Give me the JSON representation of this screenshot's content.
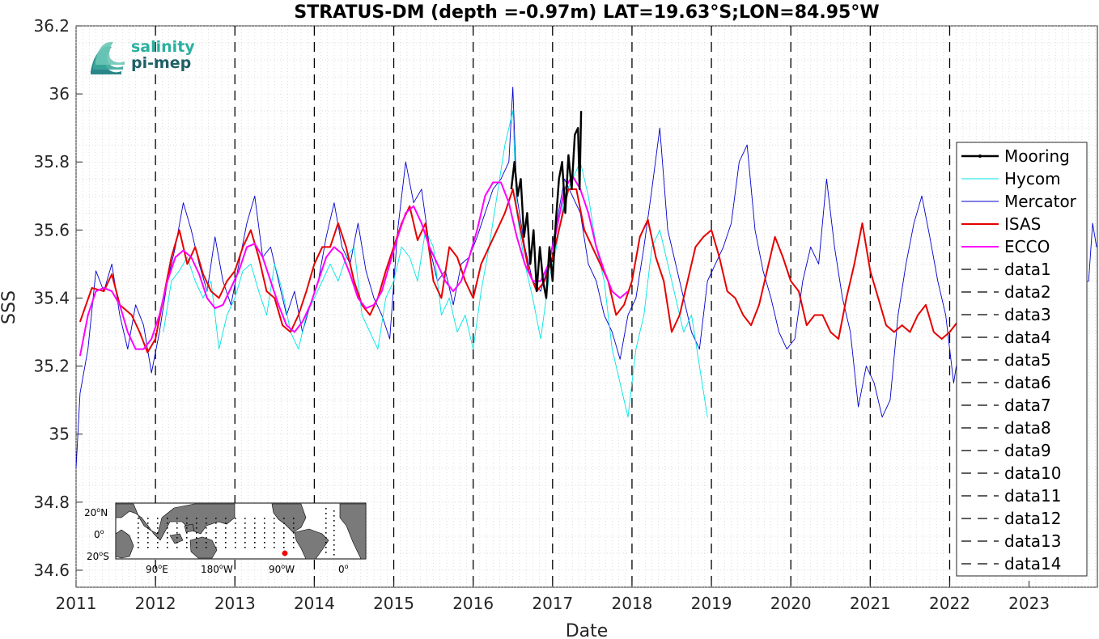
{
  "chart_data": {
    "type": "line",
    "title": "STRATUS-DM (depth =-0.97m) LAT=19.63°S;LON=84.95°W",
    "xlabel": "Date",
    "ylabel": "SSS",
    "xlim": [
      2011.0,
      2023.86
    ],
    "ylim": [
      34.55,
      36.2
    ],
    "x_ticks": [
      "2011",
      "2012",
      "2013",
      "2014",
      "2015",
      "2016",
      "2017",
      "2018",
      "2019",
      "2020",
      "2021",
      "2022",
      "2023"
    ],
    "y_ticks": [
      34.6,
      34.8,
      35,
      35.2,
      35.4,
      35.6,
      35.8,
      36,
      36.2
    ],
    "y_tick_labels": [
      "34.6",
      "34.8",
      "35",
      "35.2",
      "35.4",
      "35.6",
      "35.8",
      "36",
      "36.2"
    ],
    "grid": "minor dotted",
    "legend_position": "right",
    "series": [
      {
        "name": "Mercator",
        "color": "#0000cd",
        "width": 0.9,
        "x": [
          2011.0,
          2011.05,
          2011.15,
          2011.25,
          2011.35,
          2011.45,
          2011.55,
          2011.65,
          2011.75,
          2011.85,
          2011.95,
          2012.05,
          2012.15,
          2012.25,
          2012.35,
          2012.45,
          2012.55,
          2012.65,
          2012.75,
          2012.85,
          2012.95,
          2013.05,
          2013.15,
          2013.25,
          2013.35,
          2013.45,
          2013.55,
          2013.65,
          2013.75,
          2013.85,
          2013.95,
          2014.05,
          2014.15,
          2014.25,
          2014.35,
          2014.45,
          2014.55,
          2014.65,
          2014.75,
          2014.85,
          2014.95,
          2015.05,
          2015.15,
          2015.25,
          2015.35,
          2015.45,
          2015.55,
          2015.65,
          2015.75,
          2015.85,
          2015.95,
          2016.05,
          2016.15,
          2016.25,
          2016.35,
          2016.45,
          2016.5,
          2016.55,
          2016.65,
          2016.75,
          2016.85,
          2016.95,
          2017.05,
          2017.15,
          2017.25,
          2017.35,
          2017.45,
          2017.55,
          2017.65,
          2017.75,
          2017.85,
          2017.95,
          2018.05,
          2018.15,
          2018.25,
          2018.35,
          2018.45,
          2018.55,
          2018.65,
          2018.75,
          2018.85,
          2018.95,
          2019.05,
          2019.15,
          2019.25,
          2019.35,
          2019.45,
          2019.55,
          2019.65,
          2019.75,
          2019.85,
          2019.95,
          2020.05,
          2020.15,
          2020.25,
          2020.35,
          2020.45,
          2020.55,
          2020.65,
          2020.75,
          2020.85,
          2020.95,
          2021.05,
          2021.15,
          2021.25,
          2021.35,
          2021.45,
          2021.55,
          2021.65,
          2021.75,
          2021.85,
          2021.95,
          2022.05,
          2022.15,
          2022.25,
          2023.75,
          2023.8,
          2023.85
        ],
        "y": [
          34.9,
          35.12,
          35.25,
          35.48,
          35.42,
          35.5,
          35.35,
          35.25,
          35.38,
          35.32,
          35.18,
          35.3,
          35.45,
          35.55,
          35.68,
          35.6,
          35.5,
          35.42,
          35.58,
          35.45,
          35.38,
          35.5,
          35.62,
          35.7,
          35.52,
          35.55,
          35.45,
          35.35,
          35.42,
          35.3,
          35.38,
          35.45,
          35.58,
          35.68,
          35.55,
          35.5,
          35.62,
          35.48,
          35.4,
          35.35,
          35.28,
          35.6,
          35.8,
          35.68,
          35.72,
          35.55,
          35.45,
          35.48,
          35.38,
          35.5,
          35.52,
          35.58,
          35.65,
          35.72,
          35.75,
          35.8,
          36.02,
          35.7,
          35.55,
          35.45,
          35.42,
          35.5,
          35.62,
          35.75,
          35.7,
          35.65,
          35.5,
          35.45,
          35.35,
          35.3,
          35.22,
          35.35,
          35.4,
          35.55,
          35.72,
          35.9,
          35.6,
          35.5,
          35.4,
          35.3,
          35.25,
          35.45,
          35.5,
          35.55,
          35.62,
          35.8,
          35.85,
          35.6,
          35.48,
          35.4,
          35.3,
          35.25,
          35.28,
          35.45,
          35.55,
          35.5,
          35.75,
          35.55,
          35.4,
          35.3,
          35.08,
          35.2,
          35.15,
          35.05,
          35.1,
          35.35,
          35.5,
          35.62,
          35.7,
          35.58,
          35.45,
          35.35,
          35.15,
          35.3,
          35.35,
          35.45,
          35.62,
          35.55
        ]
      },
      {
        "name": "Hycom",
        "color": "#00e5e5",
        "width": 0.9,
        "x": [
          2012.1,
          2012.2,
          2012.3,
          2012.4,
          2012.5,
          2012.6,
          2012.7,
          2012.8,
          2012.9,
          2013.0,
          2013.1,
          2013.2,
          2013.3,
          2013.4,
          2013.5,
          2013.6,
          2013.7,
          2013.8,
          2013.9,
          2014.0,
          2014.1,
          2014.2,
          2014.3,
          2014.4,
          2014.5,
          2014.6,
          2014.7,
          2014.8,
          2014.9,
          2015.0,
          2015.1,
          2015.2,
          2015.3,
          2015.4,
          2015.5,
          2015.6,
          2015.7,
          2015.8,
          2015.9,
          2016.0,
          2016.1,
          2016.2,
          2016.3,
          2016.4,
          2016.5,
          2016.55,
          2016.65,
          2016.75,
          2016.85,
          2016.95,
          2017.05,
          2017.15,
          2017.25,
          2017.35,
          2017.45,
          2017.55,
          2017.65,
          2017.75,
          2017.85,
          2017.95,
          2018.05,
          2018.15,
          2018.25,
          2018.35,
          2018.45,
          2018.55,
          2018.65,
          2018.75,
          2018.85,
          2018.95
        ],
        "y": [
          35.3,
          35.45,
          35.48,
          35.52,
          35.45,
          35.4,
          35.45,
          35.25,
          35.35,
          35.4,
          35.48,
          35.5,
          35.42,
          35.35,
          35.5,
          35.42,
          35.3,
          35.25,
          35.35,
          35.4,
          35.45,
          35.5,
          35.45,
          35.52,
          35.55,
          35.35,
          35.3,
          35.25,
          35.4,
          35.45,
          35.55,
          35.52,
          35.45,
          35.6,
          35.55,
          35.35,
          35.4,
          35.3,
          35.35,
          35.25,
          35.42,
          35.55,
          35.7,
          35.85,
          35.95,
          35.65,
          35.5,
          35.4,
          35.28,
          35.45,
          35.55,
          35.7,
          35.75,
          35.8,
          35.7,
          35.55,
          35.45,
          35.25,
          35.15,
          35.05,
          35.25,
          35.35,
          35.55,
          35.6,
          35.5,
          35.4,
          35.3,
          35.35,
          35.2,
          35.05
        ]
      },
      {
        "name": "ISAS",
        "color": "#e60000",
        "width": 2.0,
        "x": [
          2011.05,
          2011.2,
          2011.35,
          2011.45,
          2011.55,
          2011.7,
          2011.8,
          2011.9,
          2012.0,
          2012.1,
          2012.2,
          2012.3,
          2012.4,
          2012.5,
          2012.6,
          2012.7,
          2012.8,
          2012.9,
          2013.0,
          2013.1,
          2013.2,
          2013.3,
          2013.4,
          2013.5,
          2013.6,
          2013.7,
          2013.8,
          2013.9,
          2014.0,
          2014.1,
          2014.2,
          2014.3,
          2014.4,
          2014.5,
          2014.6,
          2014.7,
          2014.8,
          2014.9,
          2015.0,
          2015.1,
          2015.2,
          2015.3,
          2015.4,
          2015.5,
          2015.6,
          2015.7,
          2015.8,
          2015.9,
          2016.0,
          2016.1,
          2016.2,
          2016.3,
          2016.4,
          2016.5,
          2016.6,
          2016.7,
          2016.8,
          2016.9,
          2017.0,
          2017.1,
          2017.2,
          2017.3,
          2017.4,
          2017.5,
          2017.6,
          2017.7,
          2017.8,
          2017.9,
          2018.0,
          2018.1,
          2018.2,
          2018.3,
          2018.4,
          2018.5,
          2018.6,
          2018.7,
          2018.8,
          2018.9,
          2019.0,
          2019.1,
          2019.2,
          2019.3,
          2019.4,
          2019.5,
          2019.6,
          2019.7,
          2019.8,
          2019.9,
          2020.0,
          2020.1,
          2020.2,
          2020.3,
          2020.4,
          2020.5,
          2020.6,
          2020.7,
          2020.8,
          2020.9,
          2021.0,
          2021.1,
          2021.2,
          2021.3,
          2021.4,
          2021.5,
          2021.6,
          2021.7,
          2021.8,
          2021.9,
          2022.0,
          2022.1
        ],
        "y": [
          35.33,
          35.43,
          35.42,
          35.47,
          35.38,
          35.35,
          35.3,
          35.24,
          35.28,
          35.4,
          35.52,
          35.6,
          35.5,
          35.55,
          35.47,
          35.42,
          35.4,
          35.45,
          35.48,
          35.55,
          35.6,
          35.52,
          35.42,
          35.4,
          35.32,
          35.3,
          35.35,
          35.42,
          35.5,
          35.55,
          35.55,
          35.62,
          35.55,
          35.45,
          35.38,
          35.35,
          35.4,
          35.48,
          35.55,
          35.62,
          35.67,
          35.57,
          35.62,
          35.45,
          35.4,
          35.55,
          35.52,
          35.45,
          35.4,
          35.5,
          35.55,
          35.6,
          35.65,
          35.72,
          35.6,
          35.48,
          35.42,
          35.45,
          35.52,
          35.62,
          35.72,
          35.72,
          35.6,
          35.55,
          35.5,
          35.45,
          35.35,
          35.38,
          35.45,
          35.58,
          35.63,
          35.52,
          35.45,
          35.3,
          35.35,
          35.45,
          35.55,
          35.58,
          35.6,
          35.52,
          35.42,
          35.4,
          35.35,
          35.32,
          35.38,
          35.48,
          35.58,
          35.52,
          35.45,
          35.42,
          35.32,
          35.35,
          35.35,
          35.3,
          35.28,
          35.4,
          35.5,
          35.62,
          35.48,
          35.4,
          35.32,
          35.3,
          35.32,
          35.3,
          35.35,
          35.38,
          35.3,
          35.28,
          35.3,
          35.33
        ]
      },
      {
        "name": "ECCO",
        "color": "#ff00ff",
        "width": 2.0,
        "x": [
          2011.05,
          2011.15,
          2011.25,
          2011.35,
          2011.45,
          2011.55,
          2011.65,
          2011.75,
          2011.85,
          2011.95,
          2012.05,
          2012.15,
          2012.25,
          2012.35,
          2012.45,
          2012.55,
          2012.65,
          2012.75,
          2012.85,
          2012.95,
          2013.05,
          2013.15,
          2013.25,
          2013.35,
          2013.45,
          2013.55,
          2013.65,
          2013.75,
          2013.85,
          2013.95,
          2014.05,
          2014.15,
          2014.25,
          2014.35,
          2014.45,
          2014.55,
          2014.65,
          2014.75,
          2014.85,
          2014.95,
          2015.05,
          2015.15,
          2015.25,
          2015.35,
          2015.45,
          2015.55,
          2015.65,
          2015.75,
          2015.85,
          2015.95,
          2016.05,
          2016.15,
          2016.25,
          2016.35,
          2016.45,
          2016.55,
          2016.65,
          2016.75,
          2016.85,
          2016.95,
          2017.05,
          2017.15,
          2017.25,
          2017.35,
          2017.45,
          2017.55,
          2017.65,
          2017.75,
          2017.85,
          2017.95
        ],
        "y": [
          35.23,
          35.35,
          35.42,
          35.43,
          35.42,
          35.38,
          35.3,
          35.25,
          35.25,
          35.28,
          35.35,
          35.45,
          35.52,
          35.54,
          35.52,
          35.47,
          35.4,
          35.37,
          35.38,
          35.43,
          35.48,
          35.55,
          35.56,
          35.52,
          35.45,
          35.38,
          35.32,
          35.3,
          35.33,
          35.38,
          35.45,
          35.52,
          35.55,
          35.53,
          35.47,
          35.4,
          35.37,
          35.38,
          35.42,
          35.5,
          35.58,
          35.65,
          35.67,
          35.62,
          35.55,
          35.5,
          35.45,
          35.42,
          35.45,
          35.52,
          35.6,
          35.7,
          35.74,
          35.74,
          35.68,
          35.58,
          35.5,
          35.45,
          35.45,
          35.5,
          35.6,
          35.72,
          35.76,
          35.72,
          35.65,
          35.55,
          35.48,
          35.42,
          35.4,
          35.42
        ]
      },
      {
        "name": "Mooring",
        "color": "#000000",
        "width": 2.4,
        "x": [
          2016.48,
          2016.52,
          2016.56,
          2016.6,
          2016.64,
          2016.68,
          2016.72,
          2016.76,
          2016.8,
          2016.84,
          2016.88,
          2016.92,
          2016.96,
          2017.0,
          2017.04,
          2017.08,
          2017.12,
          2017.16,
          2017.2,
          2017.24,
          2017.28,
          2017.32,
          2017.34,
          2017.36
        ],
        "y": [
          35.72,
          35.8,
          35.7,
          35.75,
          35.58,
          35.65,
          35.5,
          35.6,
          35.42,
          35.55,
          35.45,
          35.4,
          35.55,
          35.45,
          35.62,
          35.75,
          35.8,
          35.65,
          35.82,
          35.72,
          35.88,
          35.9,
          35.72,
          35.95
        ]
      }
    ],
    "vertical_dashed_lines": [
      2012.0,
      2013.0,
      2014.0,
      2015.0,
      2016.0,
      2017.0,
      2018.0,
      2019.0,
      2020.0,
      2021.0,
      2022.0
    ],
    "legend": [
      "Mooring",
      "Hycom",
      "Mercator",
      "ISAS",
      "ECCO",
      "data1",
      "data2",
      "data3",
      "data4",
      "data5",
      "data6",
      "data7",
      "data8",
      "data9",
      "data10",
      "data11",
      "data12",
      "data13",
      "data14"
    ]
  },
  "logo": {
    "line1": "salinity",
    "line2": "pi-mep",
    "color1": "#2ab0a0",
    "color2": "#1e5f66"
  },
  "inset_map": {
    "lat_labels": [
      "20",
      "0",
      "20"
    ],
    "lat_suffixes": [
      "N",
      "",
      "S"
    ],
    "lon_labels": [
      "90",
      "180",
      "90",
      "0"
    ],
    "lon_suffixes": [
      "E",
      "W",
      "W",
      ""
    ],
    "degree_mark": "o",
    "station_color": "#ff0000"
  }
}
